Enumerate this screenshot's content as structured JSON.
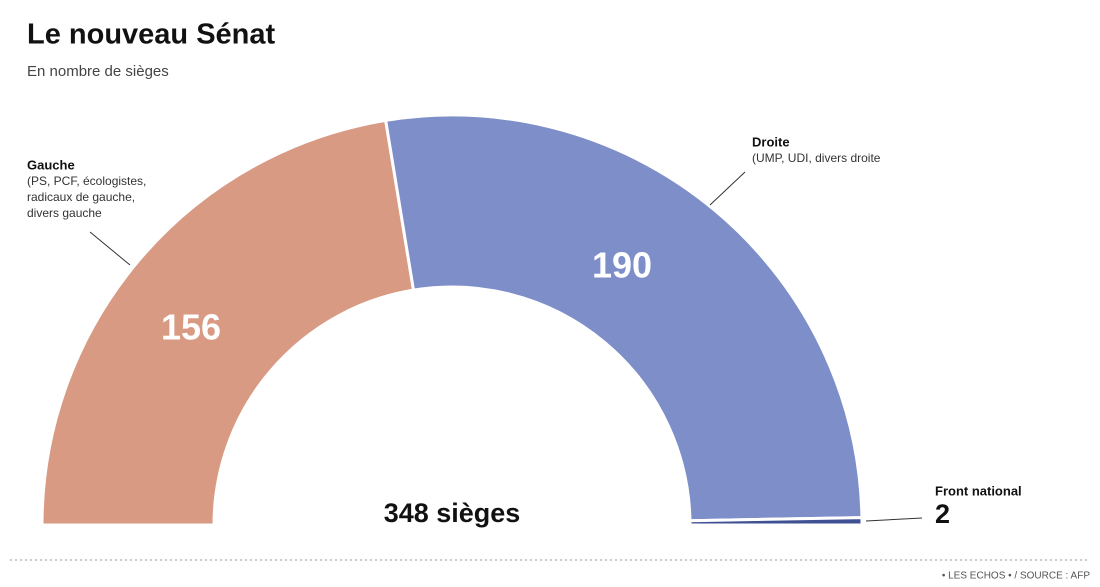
{
  "chart_data": {
    "type": "half-donut",
    "title": "Le nouveau Sénat",
    "subtitle": "En nombre de sièges",
    "total_label": "348 sièges",
    "series": [
      {
        "name": "Gauche",
        "description": [
          "(PS, PCF, écologistes,",
          "radicaux de gauche,",
          "divers gauche"
        ],
        "color": "#d99a84",
        "value": 156
      },
      {
        "name": "Droite",
        "description": [
          "(UMP, UDI, divers droite"
        ],
        "color": "#7d8ec8",
        "value": 190
      },
      {
        "name": "Front national",
        "color": "#3f5193",
        "value": 2
      }
    ],
    "source": "• LES ECHOS • / SOURCE : AFP"
  }
}
